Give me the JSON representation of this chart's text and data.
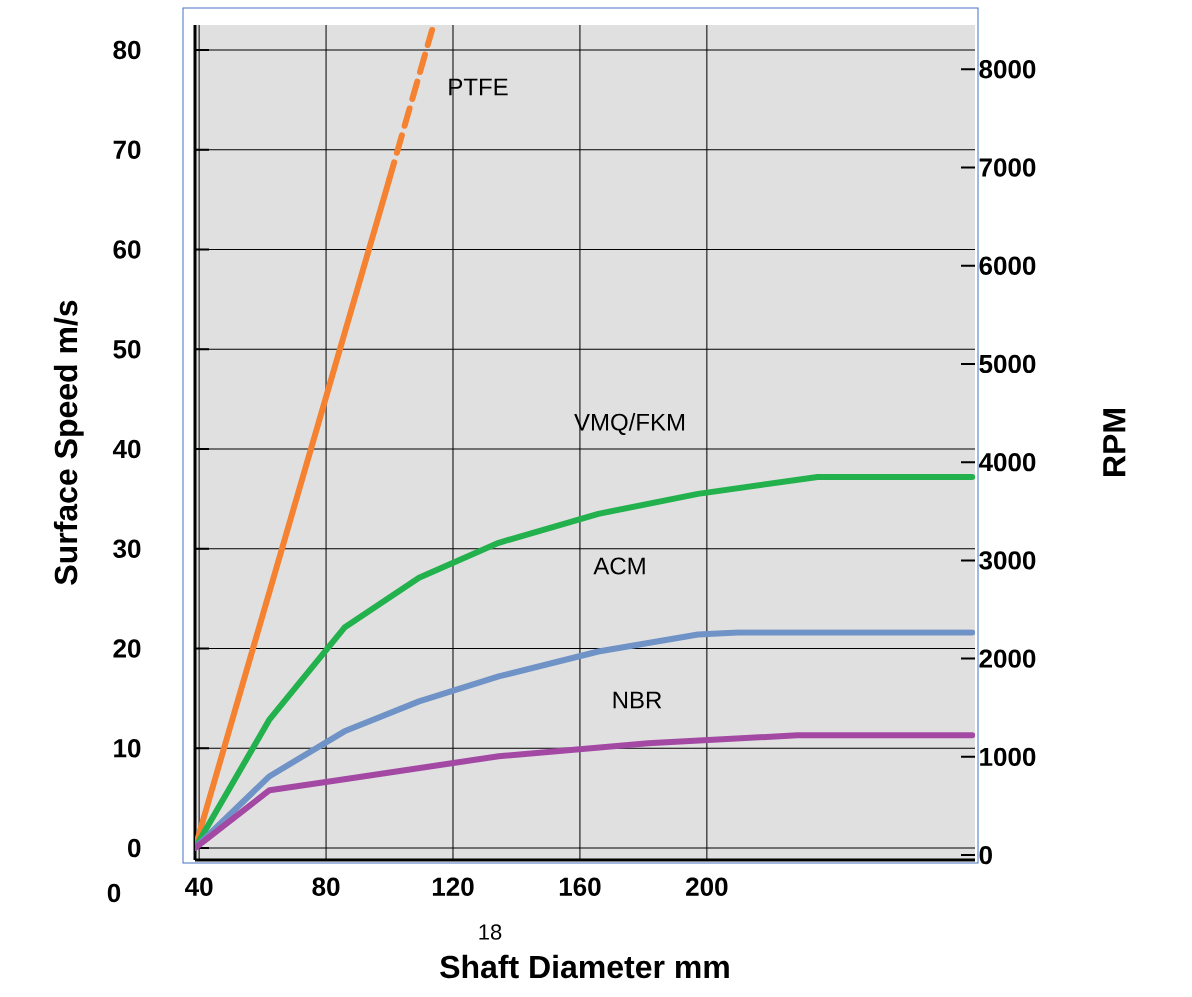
{
  "chart_data": {
    "type": "line",
    "xlabel": "Shaft Diameter mm",
    "ylabel": "Surface Speed m/s",
    "y2label": "RPM",
    "xlim": [
      38.7,
      284.5
    ],
    "xticks": [
      40,
      80,
      120,
      160,
      200
    ],
    "ylim": [
      -1.2,
      82.5
    ],
    "yticks": [
      0,
      10,
      20,
      30,
      40,
      50,
      60,
      70,
      80
    ],
    "y2lim": [
      -50,
      8450
    ],
    "y2ticks": [
      0,
      1000,
      2000,
      3000,
      4000,
      5000,
      6000,
      7000,
      8000
    ],
    "grid": true,
    "marker": "none",
    "series": [
      {
        "color": "#f58230",
        "x": [
          38.7,
          99.9
        ],
        "values": [
          0,
          67
        ]
      },
      {
        "color": "#f58230",
        "x": [
          99.9,
          113.4
        ],
        "values": [
          67,
          82
        ],
        "line_style": "dashed"
      },
      {
        "color": "#22b14c",
        "x": [
          38.7,
          62.2,
          85.8,
          109.3,
          134.4,
          165.8,
          197.2,
          234.9,
          283.6
        ],
        "values": [
          0,
          12.9,
          22.1,
          27.1,
          30.6,
          33.5,
          35.5,
          37.2,
          37.2
        ]
      },
      {
        "color": "#6f93c6",
        "x": [
          38.7,
          62.2,
          85.8,
          109.3,
          134.4,
          165.8,
          197.2,
          209.8,
          283.6
        ],
        "values": [
          0,
          7.2,
          11.7,
          14.7,
          17.2,
          19.7,
          21.4,
          21.6,
          21.6
        ]
      },
      {
        "color": "#a349a4",
        "x": [
          38.7,
          62.2,
          85.8,
          134.4,
          181.5,
          228.6,
          283.6
        ],
        "values": [
          0,
          5.8,
          6.9,
          9.2,
          10.5,
          11.3,
          11.3
        ]
      }
    ],
    "annotations": [
      "0",
      "18",
      "PTFE",
      "VMQ/FKM",
      "ACM",
      "NBR"
    ]
  }
}
